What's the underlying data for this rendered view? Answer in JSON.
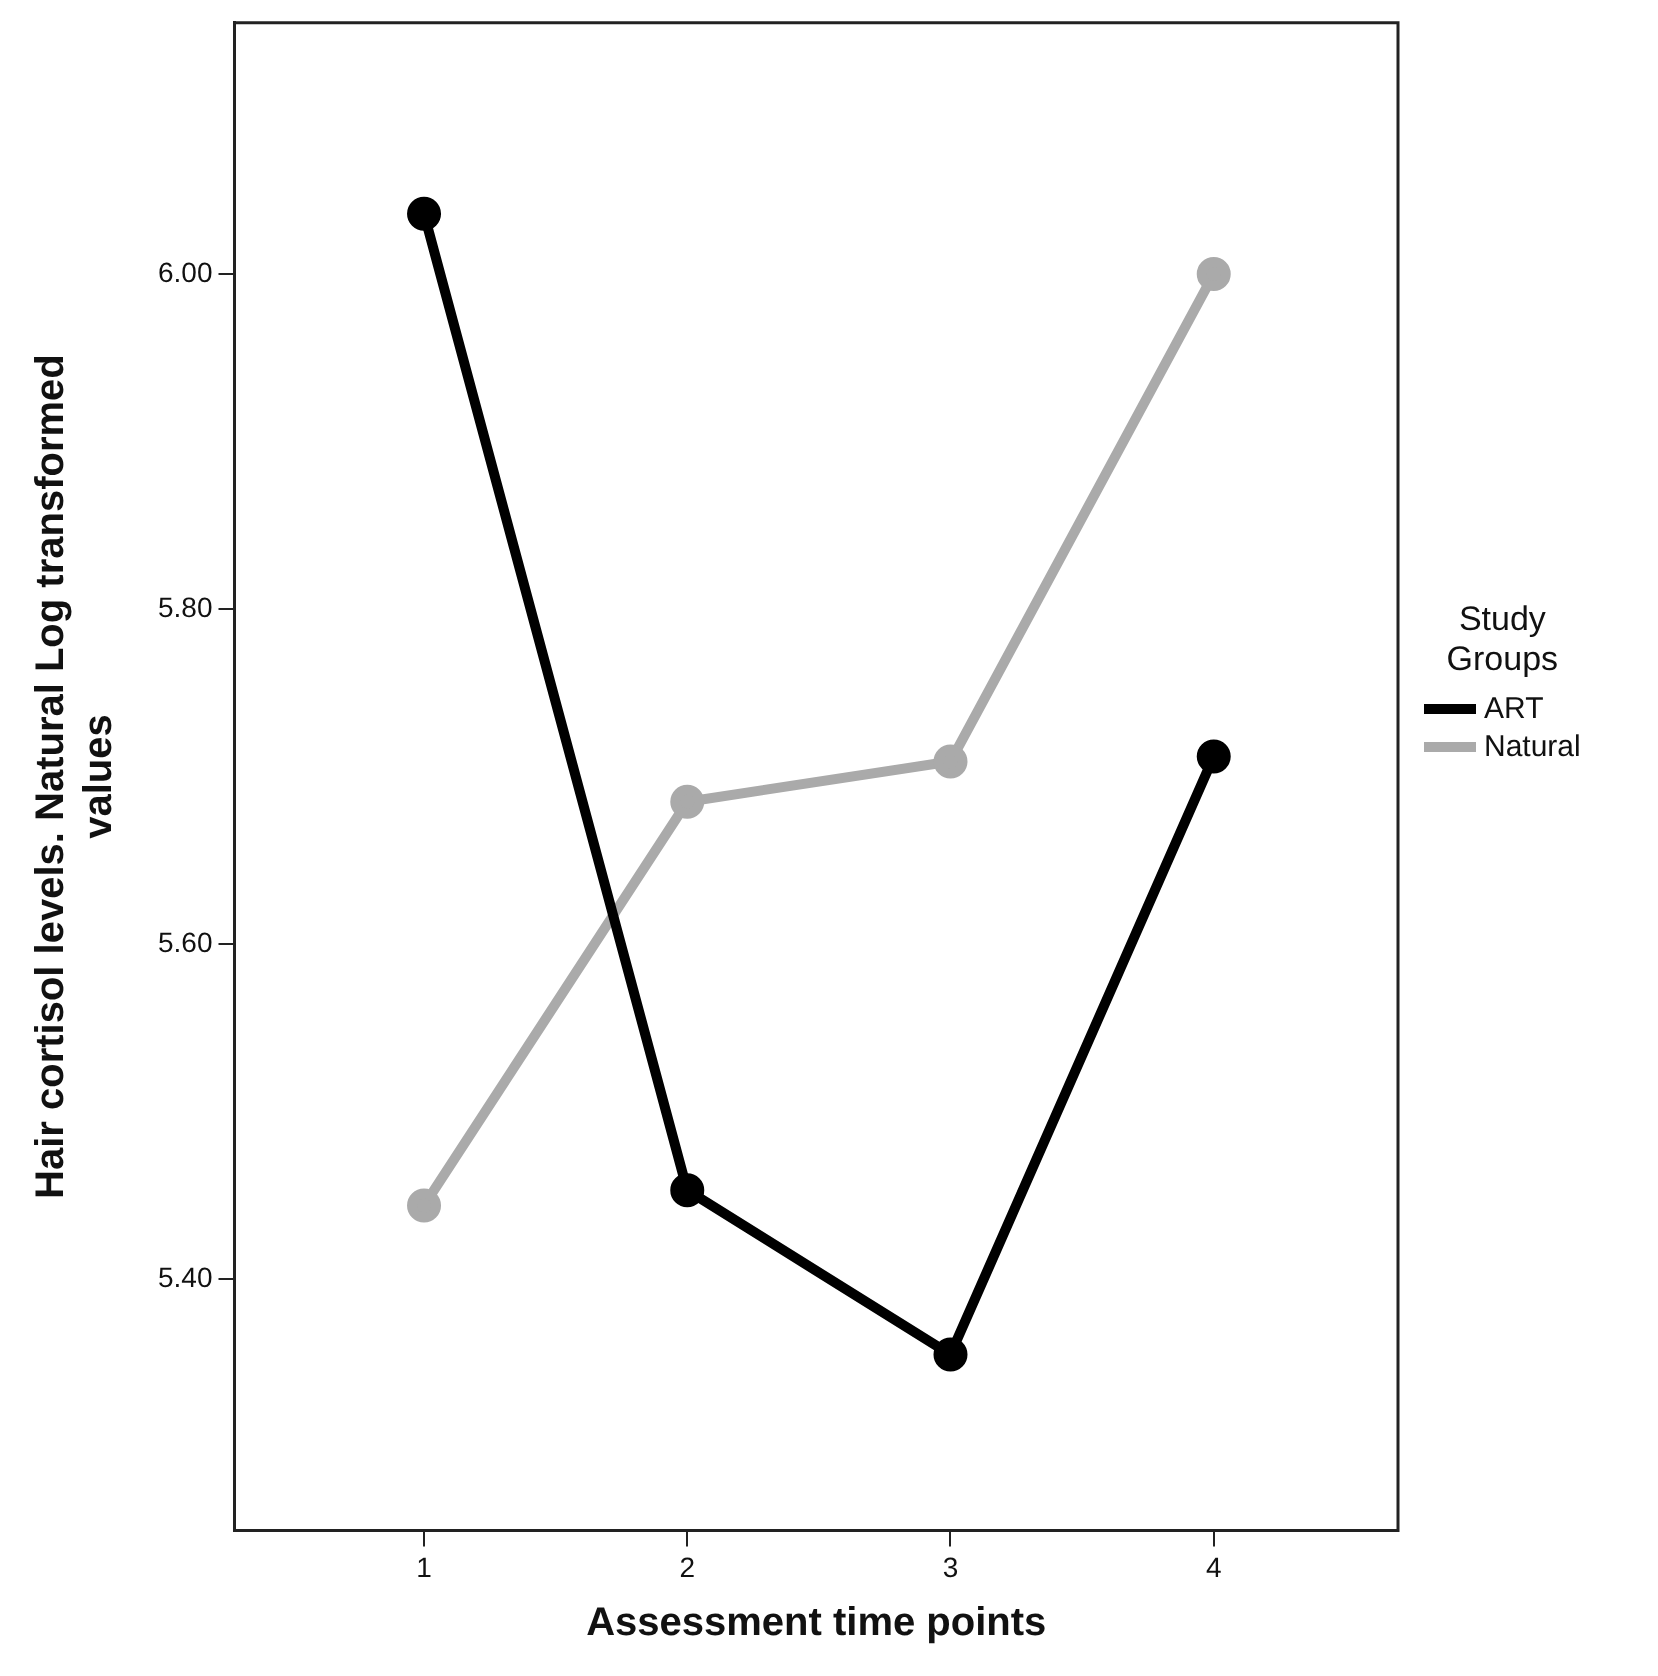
{
  "chart_data": {
    "type": "line",
    "xlabel": "Assessment time points",
    "ylabel": "Hair cortisol levels. Natural Log transformed values",
    "legend_title": "Study Groups",
    "legend": "right",
    "marker": "circle",
    "line_style": "solid",
    "grid": false,
    "x": [
      1,
      2,
      3,
      4
    ],
    "xlim": [
      0.28,
      4.7
    ],
    "xticks": [
      1,
      2,
      3,
      4
    ],
    "ylim": [
      5.25,
      6.15
    ],
    "yticks": [
      {
        "value": 5.4,
        "label": "5.40"
      },
      {
        "value": 5.6,
        "label": "5.60"
      },
      {
        "value": 5.8,
        "label": "5.80"
      },
      {
        "value": 6,
        "label": "6.00"
      }
    ],
    "series": [
      {
        "name": "ART",
        "color": "#000000",
        "values": [
          6.036,
          5.453,
          5.355,
          5.712
        ]
      },
      {
        "name": "Natural",
        "color": "#aaaaaa",
        "values": [
          5.444,
          5.685,
          5.709,
          6.0
        ]
      }
    ]
  }
}
